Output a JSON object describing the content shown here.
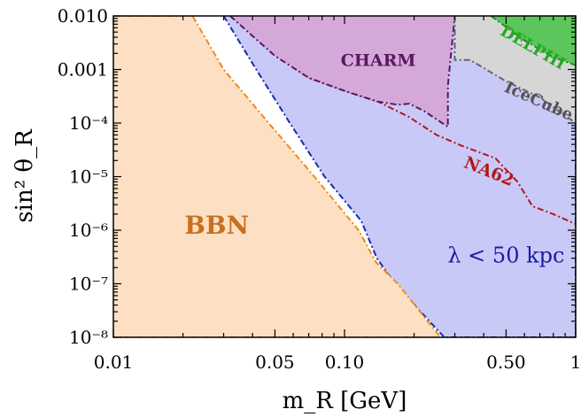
{
  "chart_data": {
    "type": "area",
    "title": "",
    "xlabel": "m_R [GeV]",
    "ylabel": "sin² θ_R",
    "x_scale": "log",
    "y_scale": "log",
    "xlim": [
      0.01,
      1.0
    ],
    "ylim": [
      1e-08,
      0.01
    ],
    "grid": false,
    "x_ticks": [
      {
        "value": 0.01,
        "label": "0.01"
      },
      {
        "value": 0.05,
        "label": "0.05"
      },
      {
        "value": 0.1,
        "label": "0.10"
      },
      {
        "value": 0.5,
        "label": "0.50"
      },
      {
        "value": 1.0,
        "label": "1"
      }
    ],
    "y_ticks": [
      {
        "value": 0.01,
        "label": "0.010"
      },
      {
        "value": 0.001,
        "label": "0.001"
      },
      {
        "value": 0.0001,
        "label": "10⁻⁴"
      },
      {
        "value": 1e-05,
        "label": "10⁻⁵"
      },
      {
        "value": 1e-06,
        "label": "10⁻⁶"
      },
      {
        "value": 1e-07,
        "label": "10⁻⁷"
      },
      {
        "value": 1e-08,
        "label": "10⁻⁸"
      }
    ],
    "regions": [
      {
        "name": "λ < 50 kpc",
        "fill": "#c9c9f7",
        "stroke": "#1a2ab0",
        "label_at": [
          0.5,
          3.2e-07
        ],
        "label_color": "#1a1aa8",
        "label_size": 24,
        "label_rotation": 0,
        "points": [
          [
            0.03,
            0.01
          ],
          [
            0.0415,
            0.001
          ],
          [
            0.058,
            0.0001
          ],
          [
            0.082,
            1e-05
          ],
          [
            0.118,
            1.5e-06
          ],
          [
            0.138,
            3e-07
          ],
          [
            0.165,
            1e-07
          ],
          [
            0.27,
            1e-08
          ],
          [
            1.0,
            1e-08
          ],
          [
            1.0,
            0.01
          ]
        ]
      },
      {
        "name": "NA62",
        "fill": "none",
        "stroke": "#b01818",
        "label_at": [
          0.42,
          1.2e-05
        ],
        "label_color": "#b01818",
        "label_size": 19,
        "label_rotation": 22,
        "points": [
          [
            0.038,
            0.01
          ],
          [
            0.05,
            0.002
          ],
          [
            0.07,
            0.0007
          ],
          [
            0.1,
            0.0004
          ],
          [
            0.14,
            0.00025
          ],
          [
            0.19,
            0.00013
          ],
          [
            0.25,
            6e-05
          ],
          [
            0.32,
            3.8e-05
          ],
          [
            0.45,
            2.2e-05
          ],
          [
            0.56,
            8e-06
          ],
          [
            0.65,
            2.8e-06
          ],
          [
            0.8,
            2e-06
          ],
          [
            1.0,
            1.3e-06
          ]
        ]
      },
      {
        "name": "CHARM",
        "fill": "#d4a9d9",
        "stroke": "#5a1660",
        "label_at": [
          0.14,
          0.0014
        ],
        "label_color": "#5a1660",
        "label_size": 19,
        "label_rotation": 0,
        "points": [
          [
            0.032,
            0.01
          ],
          [
            0.05,
            0.0018
          ],
          [
            0.07,
            0.0007
          ],
          [
            0.1,
            0.0004
          ],
          [
            0.14,
            0.00025
          ],
          [
            0.17,
            0.00022
          ],
          [
            0.19,
            0.00023
          ],
          [
            0.22,
            0.00017
          ],
          [
            0.28,
            8.5e-05
          ],
          [
            0.28,
            0.0005
          ],
          [
            0.3,
            0.01
          ]
        ]
      },
      {
        "name": "IceCube",
        "fill": "#d6d6d6",
        "stroke": "#666666",
        "label_at": [
          0.69,
          0.00025
        ],
        "label_color": "#555555",
        "label_size": 18,
        "label_rotation": 24,
        "points": [
          [
            0.3,
            0.01
          ],
          [
            0.3,
            0.0015
          ],
          [
            0.35,
            0.0015
          ],
          [
            0.5,
            0.0006
          ],
          [
            0.7,
            0.0003
          ],
          [
            1.0,
            0.0001
          ],
          [
            1.0,
            0.01
          ]
        ]
      },
      {
        "name": "DELPHI",
        "fill": "#5cc55c",
        "stroke": "#1b8f1b",
        "label_at": [
          0.65,
          0.0025
        ],
        "label_color": "#22aa22",
        "label_size": 18,
        "label_rotation": 30,
        "points": [
          [
            0.43,
            0.01
          ],
          [
            0.6,
            0.0035
          ],
          [
            0.8,
            0.0017
          ],
          [
            1.0,
            0.0012
          ],
          [
            1.0,
            0.01
          ]
        ]
      },
      {
        "name": "BBN",
        "fill": "#fde0c4",
        "stroke": "#f08a1a",
        "label_at": [
          0.028,
          1.15e-06
        ],
        "label_color": "#c8701e",
        "label_size": 28,
        "label_rotation": 0,
        "points": [
          [
            0.01,
            0.01
          ],
          [
            0.022,
            0.01
          ],
          [
            0.03,
            0.001
          ],
          [
            0.047,
            0.0001
          ],
          [
            0.074,
            1e-05
          ],
          [
            0.115,
            1e-06
          ],
          [
            0.137,
            2.5e-07
          ],
          [
            0.17,
            1e-07
          ],
          [
            0.26,
            1e-08
          ],
          [
            0.01,
            1e-08
          ]
        ]
      }
    ]
  }
}
